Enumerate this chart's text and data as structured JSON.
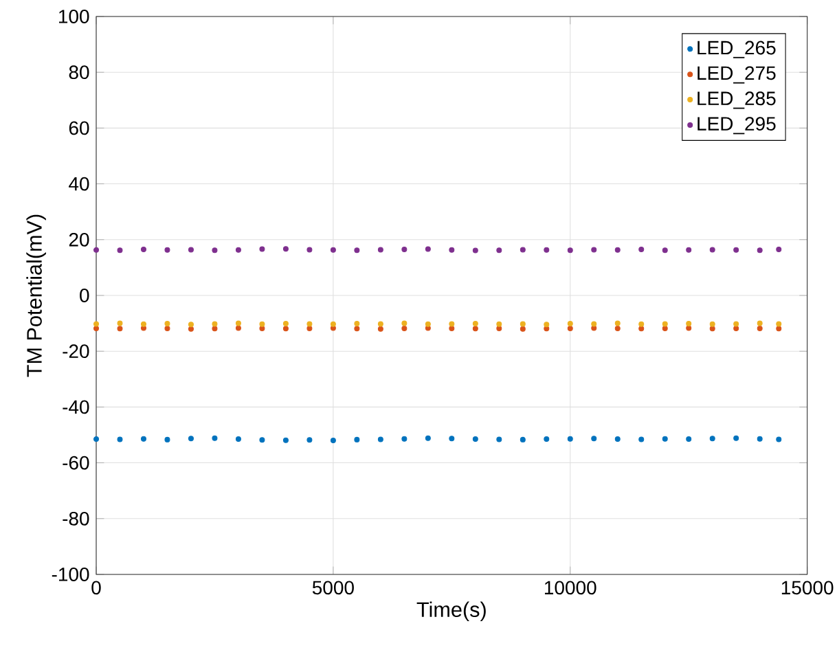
{
  "chart_data": {
    "type": "scatter",
    "xlabel": "Time(s)",
    "ylabel": "TM Potential(mV)",
    "x": [
      0,
      500,
      1000,
      1500,
      2000,
      2500,
      3000,
      3500,
      4000,
      4500,
      5000,
      5500,
      6000,
      6500,
      7000,
      7500,
      8000,
      8500,
      9000,
      9500,
      10000,
      10500,
      11000,
      11500,
      12000,
      12500,
      13000,
      13500,
      14000,
      14400
    ],
    "series": [
      {
        "name": "LED_265",
        "color": "#0072bd",
        "values": [
          -51.5,
          -51.6,
          -51.4,
          -51.7,
          -51.3,
          -51.2,
          -51.5,
          -51.8,
          -51.9,
          -51.8,
          -52.0,
          -51.7,
          -51.6,
          -51.4,
          -51.2,
          -51.3,
          -51.5,
          -51.6,
          -51.7,
          -51.5,
          -51.4,
          -51.3,
          -51.5,
          -51.6,
          -51.4,
          -51.5,
          -51.3,
          -51.2,
          -51.4,
          -51.6
        ]
      },
      {
        "name": "LED_275",
        "color": "#d95319",
        "values": [
          -11.8,
          -11.9,
          -11.7,
          -11.8,
          -12.0,
          -11.9,
          -11.7,
          -11.8,
          -11.9,
          -11.8,
          -11.7,
          -11.9,
          -12.0,
          -11.8,
          -11.7,
          -11.8,
          -11.9,
          -11.8,
          -12.0,
          -11.9,
          -11.8,
          -11.7,
          -11.8,
          -11.9,
          -11.8,
          -11.7,
          -11.9,
          -11.8,
          -11.8,
          -11.9
        ]
      },
      {
        "name": "LED_285",
        "color": "#edb120",
        "values": [
          -10.2,
          -10.0,
          -10.3,
          -10.1,
          -10.4,
          -10.2,
          -10.0,
          -10.3,
          -10.1,
          -10.2,
          -10.3,
          -10.1,
          -10.2,
          -10.0,
          -10.3,
          -10.2,
          -10.1,
          -10.3,
          -10.2,
          -10.4,
          -10.1,
          -10.2,
          -10.0,
          -10.3,
          -10.2,
          -10.1,
          -10.3,
          -10.2,
          -10.0,
          -10.2
        ]
      },
      {
        "name": "LED_295",
        "color": "#7e2f8e",
        "values": [
          16.3,
          16.2,
          16.5,
          16.3,
          16.4,
          16.2,
          16.3,
          16.6,
          16.7,
          16.4,
          16.3,
          16.2,
          16.4,
          16.5,
          16.6,
          16.3,
          16.1,
          16.2,
          16.4,
          16.3,
          16.2,
          16.4,
          16.3,
          16.5,
          16.2,
          16.3,
          16.4,
          16.3,
          16.2,
          16.5
        ]
      }
    ],
    "xlim": [
      0,
      15000
    ],
    "ylim": [
      -100,
      100
    ],
    "xticks": [
      0,
      5000,
      10000,
      15000
    ],
    "yticks": [
      -100,
      -80,
      -60,
      -40,
      -20,
      0,
      20,
      40,
      60,
      80,
      100
    ],
    "grid": true,
    "legend": "top right",
    "marker": "circle"
  }
}
